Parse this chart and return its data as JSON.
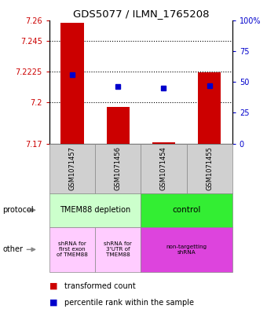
{
  "title": "GDS5077 / ILMN_1765208",
  "samples": [
    "GSM1071457",
    "GSM1071456",
    "GSM1071454",
    "GSM1071455"
  ],
  "red_values": [
    7.258,
    7.197,
    7.171,
    7.222
  ],
  "blue_values": [
    56,
    46,
    45,
    47
  ],
  "ymin": 7.17,
  "ymax": 7.26,
  "yticks": [
    7.17,
    7.2,
    7.2225,
    7.245,
    7.26
  ],
  "ytick_labels": [
    "7.17",
    "7.2",
    "7.2225",
    "7.245",
    "7.26"
  ],
  "y2min": 0,
  "y2max": 100,
  "y2ticks": [
    0,
    25,
    50,
    75,
    100
  ],
  "y2tick_labels": [
    "0",
    "25",
    "50",
    "75",
    "100%"
  ],
  "protocol_labels": [
    "TMEM88 depletion",
    "control"
  ],
  "protocol_colors": [
    "#ccffcc",
    "#33ee33"
  ],
  "other_labels": [
    "shRNA for\nfirst exon\nof TMEM88",
    "shRNA for\n3'UTR of\nTMEM88",
    "non-targetting\nshRNA"
  ],
  "other_colors": [
    "#ffccff",
    "#ffccff",
    "#dd44dd"
  ],
  "bar_color": "#cc0000",
  "dot_color": "#0000cc",
  "label_color_left": "#cc0000",
  "label_color_right": "#0000cc",
  "grid_dotted_at": [
    7.2,
    7.2225,
    7.245
  ],
  "bar_width": 0.5,
  "dot_marker_size": 5
}
